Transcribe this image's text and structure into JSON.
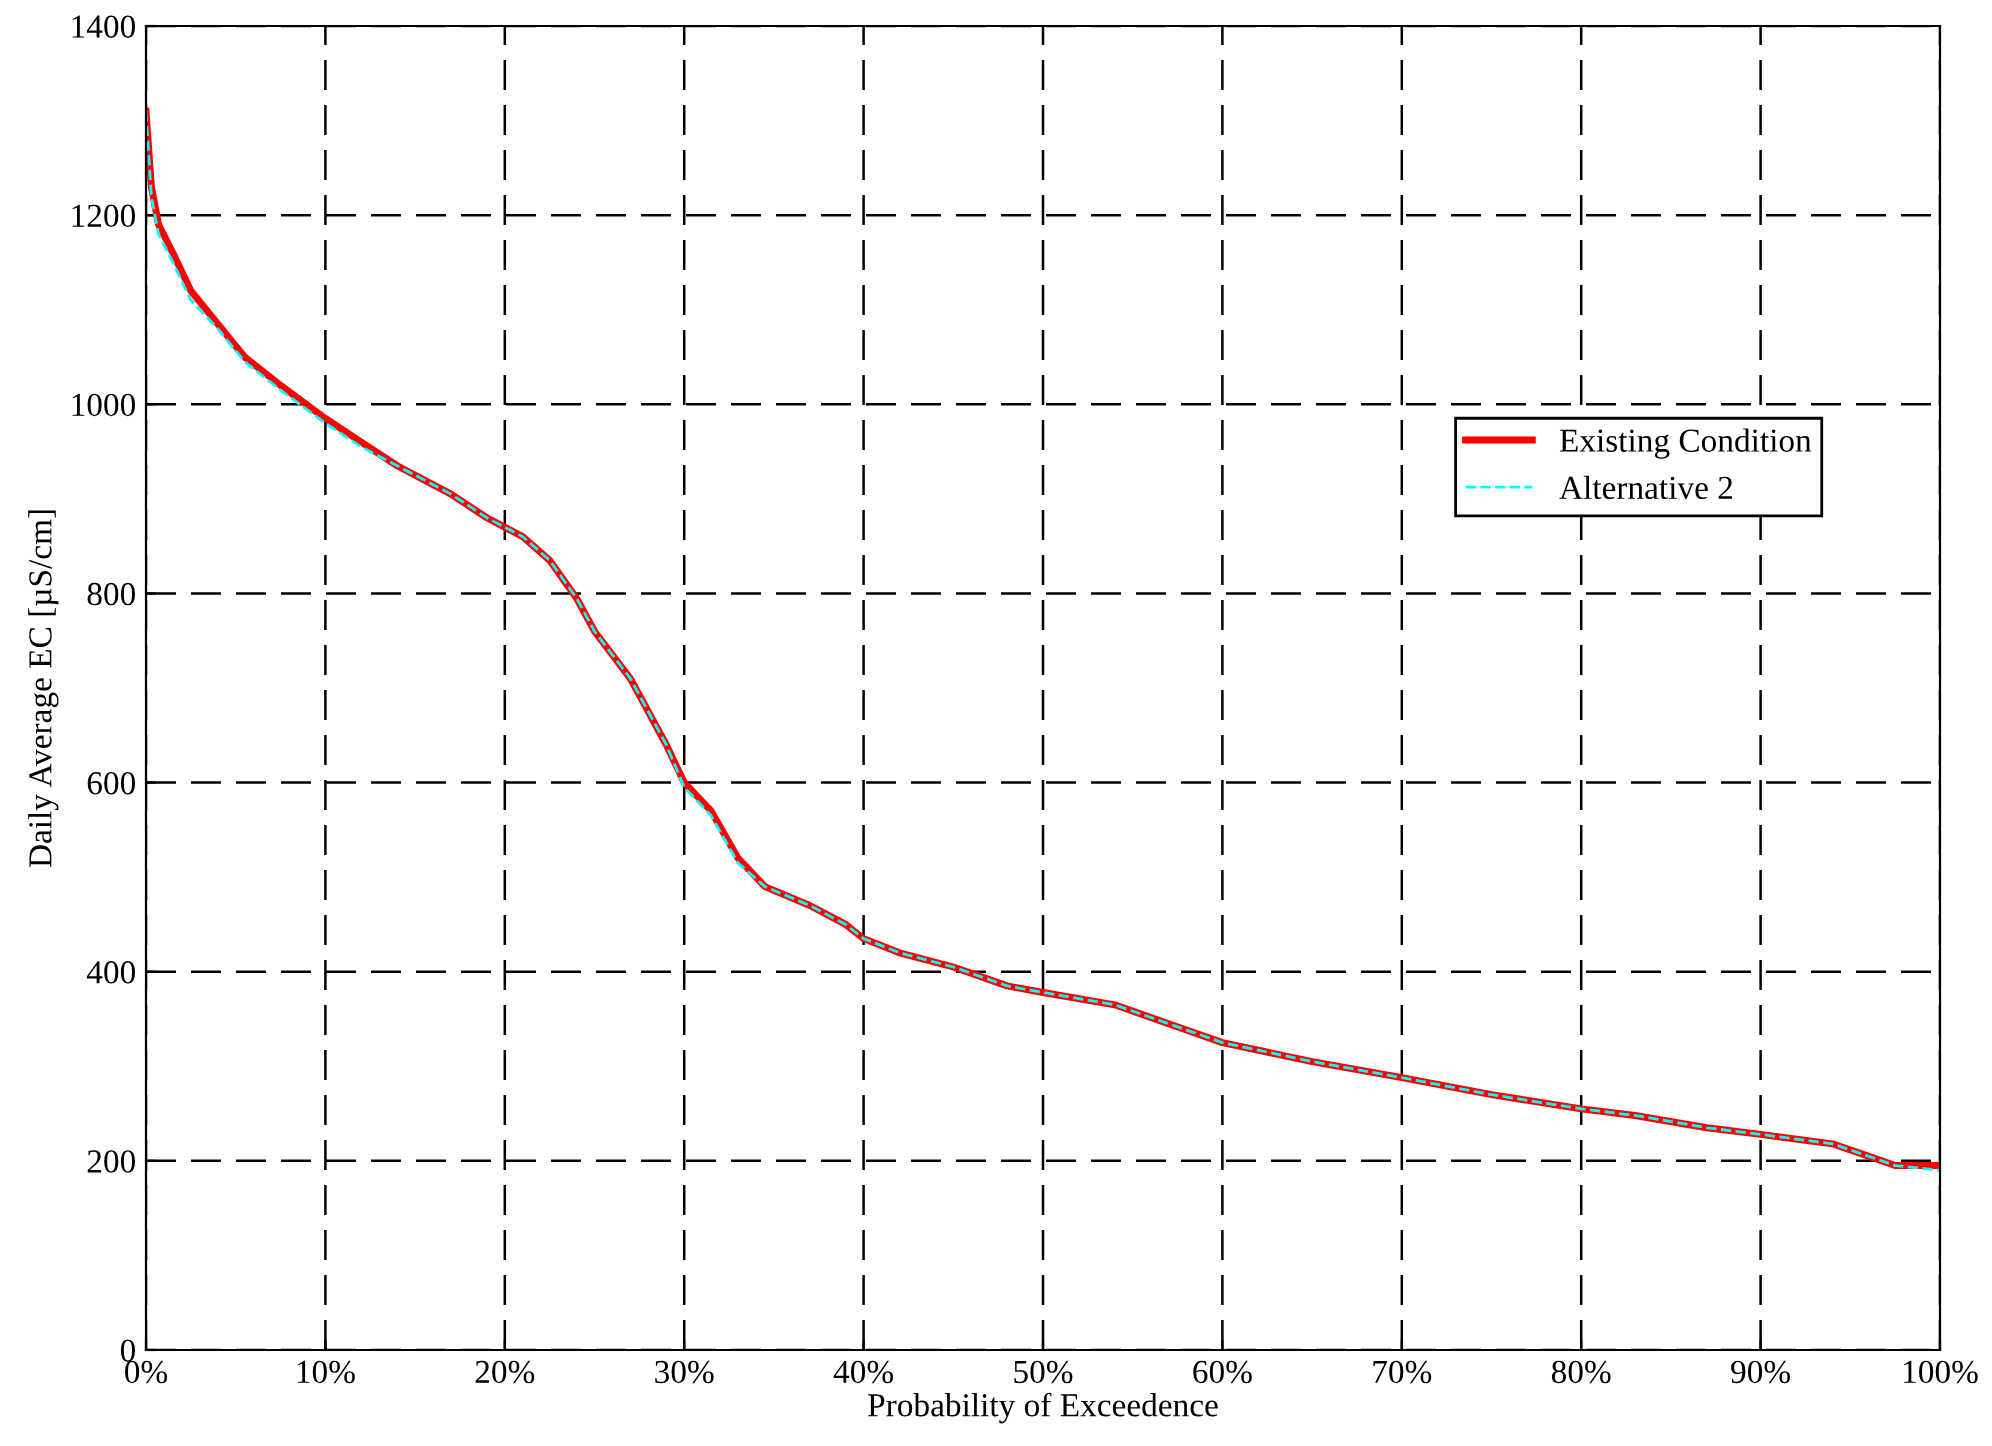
{
  "chart_data": {
    "type": "line",
    "xlabel": "Probability of Exceedence",
    "ylabel": "Daily Average EC [µS/cm]",
    "xlim": [
      0,
      100
    ],
    "ylim": [
      0,
      1400
    ],
    "xticks": [
      {
        "value": 0,
        "label": "0%"
      },
      {
        "value": 10,
        "label": "10%"
      },
      {
        "value": 20,
        "label": "20%"
      },
      {
        "value": 30,
        "label": "30%"
      },
      {
        "value": 40,
        "label": "40%"
      },
      {
        "value": 50,
        "label": "50%"
      },
      {
        "value": 60,
        "label": "60%"
      },
      {
        "value": 70,
        "label": "70%"
      },
      {
        "value": 80,
        "label": "80%"
      },
      {
        "value": 90,
        "label": "90%"
      },
      {
        "value": 100,
        "label": "100%"
      }
    ],
    "yticks": [
      0,
      200,
      400,
      600,
      800,
      1000,
      1200,
      1400
    ],
    "grid": true,
    "legend": "right",
    "x": [
      0,
      0.3,
      0.7,
      1.5,
      2.5,
      4,
      5.5,
      7.5,
      10,
      12,
      14,
      17,
      19,
      21,
      22.5,
      24,
      25,
      27,
      29,
      30,
      31.5,
      33,
      34.5,
      37,
      39,
      40,
      42,
      45,
      48,
      50,
      54,
      57,
      60,
      65,
      70,
      75,
      80,
      83,
      87,
      90,
      94,
      96,
      97.5,
      100
    ],
    "series": [
      {
        "name": "Existing Condition",
        "color": "#ff0000",
        "line_style": "solid",
        "values": [
          1310,
          1230,
          1190,
          1160,
          1120,
          1085,
          1050,
          1020,
          985,
          960,
          935,
          905,
          880,
          860,
          835,
          795,
          760,
          710,
          640,
          600,
          570,
          520,
          490,
          470,
          450,
          435,
          420,
          405,
          385,
          378,
          365,
          345,
          325,
          305,
          288,
          270,
          255,
          248,
          235,
          228,
          218,
          205,
          195,
          195
        ]
      },
      {
        "name": "Alternative 2",
        "color": "#00ffff",
        "line_style": "dashed",
        "values": [
          1310,
          1220,
          1180,
          1150,
          1110,
          1080,
          1045,
          1015,
          980,
          955,
          935,
          905,
          880,
          860,
          835,
          795,
          760,
          710,
          640,
          595,
          565,
          515,
          490,
          470,
          450,
          435,
          420,
          405,
          385,
          378,
          365,
          345,
          325,
          305,
          288,
          270,
          255,
          248,
          235,
          228,
          218,
          205,
          195,
          190
        ]
      }
    ]
  }
}
